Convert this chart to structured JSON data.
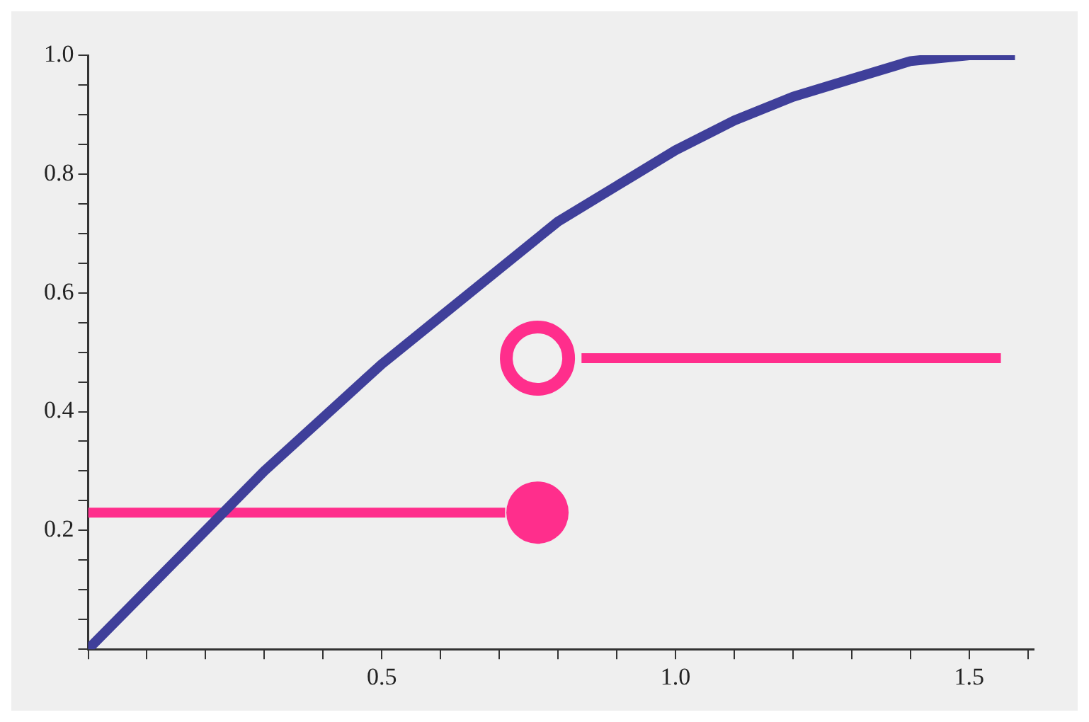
{
  "chart_data": {
    "type": "line",
    "xlim": [
      0,
      1.61
    ],
    "ylim": [
      0,
      1.0
    ],
    "xticks": [
      {
        "value": 0,
        "label": null
      },
      {
        "value": 0.1,
        "label": null
      },
      {
        "value": 0.2,
        "label": null
      },
      {
        "value": 0.3,
        "label": null
      },
      {
        "value": 0.4,
        "label": null
      },
      {
        "value": 0.5,
        "label": "0.5"
      },
      {
        "value": 0.6,
        "label": null
      },
      {
        "value": 0.7,
        "label": null
      },
      {
        "value": 0.8,
        "label": null
      },
      {
        "value": 0.9,
        "label": null
      },
      {
        "value": 1,
        "label": "1.0"
      },
      {
        "value": 1.1,
        "label": null
      },
      {
        "value": 1.2,
        "label": null
      },
      {
        "value": 1.3,
        "label": null
      },
      {
        "value": 1.4,
        "label": null
      },
      {
        "value": 1.5,
        "label": "1.5"
      },
      {
        "value": 1.6,
        "label": null
      }
    ],
    "yticks": [
      {
        "value": 0,
        "label": null
      },
      {
        "value": 0.05,
        "label": null
      },
      {
        "value": 0.1,
        "label": null
      },
      {
        "value": 0.15,
        "label": null
      },
      {
        "value": 0.2,
        "label": "0.2"
      },
      {
        "value": 0.25,
        "label": null
      },
      {
        "value": 0.3,
        "label": null
      },
      {
        "value": 0.35,
        "label": null
      },
      {
        "value": 0.4,
        "label": "0.4"
      },
      {
        "value": 0.45,
        "label": null
      },
      {
        "value": 0.5,
        "label": null
      },
      {
        "value": 0.55,
        "label": null
      },
      {
        "value": 0.6,
        "label": "0.6"
      },
      {
        "value": 0.65,
        "label": null
      },
      {
        "value": 0.7,
        "label": null
      },
      {
        "value": 0.75,
        "label": null
      },
      {
        "value": 0.8,
        "label": "0.8"
      },
      {
        "value": 0.85,
        "label": null
      },
      {
        "value": 0.9,
        "label": null
      },
      {
        "value": 0.95,
        "label": null
      },
      {
        "value": 1.0,
        "label": "1.0"
      }
    ],
    "grid": false,
    "legend": false,
    "series": [
      {
        "color": "#3f3f9a",
        "marker": "none",
        "x": [
          0,
          0.1,
          0.2,
          0.3,
          0.4,
          0.5,
          0.6,
          0.7,
          0.8,
          0.9,
          1.0,
          1.1,
          1.2,
          1.3,
          1.4,
          1.5,
          1.578
        ],
        "values": [
          0,
          0.1,
          0.2,
          0.3,
          0.39,
          0.48,
          0.56,
          0.64,
          0.72,
          0.78,
          0.84,
          0.89,
          0.93,
          0.96,
          0.99,
          1.0,
          1.0
        ]
      },
      {
        "color": "#ff2e8c",
        "marker": "none",
        "x": [
          0,
          0.71
        ],
        "values": [
          0.23,
          0.23
        ]
      },
      {
        "color": "#ff2e8c",
        "marker": "none",
        "x": [
          0.84,
          1.554
        ],
        "values": [
          0.49,
          0.49
        ]
      },
      {
        "type": "scatter",
        "color": "#ff2e8c",
        "marker": "circle",
        "x": [
          0.765
        ],
        "values": [
          0.23
        ]
      },
      {
        "type": "scatter",
        "color": "#ff2e8c",
        "marker": "circle",
        "x": [
          0.765
        ],
        "values": [
          0.49
        ]
      }
    ]
  }
}
